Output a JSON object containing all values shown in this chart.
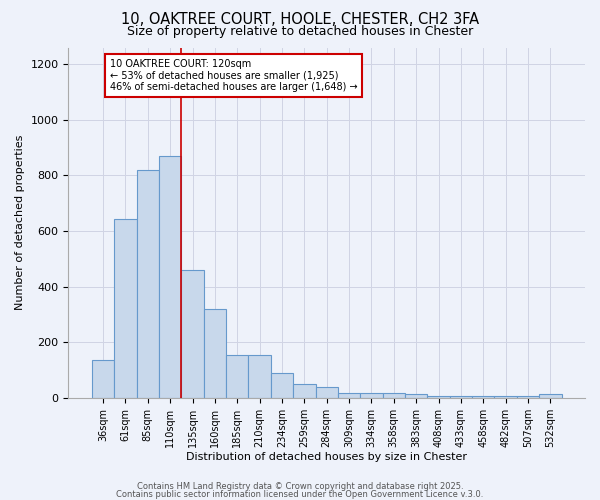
{
  "title": "10, OAKTREE COURT, HOOLE, CHESTER, CH2 3FA",
  "subtitle": "Size of property relative to detached houses in Chester",
  "xlabel": "Distribution of detached houses by size in Chester",
  "ylabel": "Number of detached properties",
  "bar_color": "#c8d8eb",
  "bar_edge_color": "#6699cc",
  "background_color": "#eef2fa",
  "grid_color": "#d0d4e4",
  "vline_color": "#cc0000",
  "vline_x": 3.5,
  "annotation_text": "10 OAKTREE COURT: 120sqm\n← 53% of detached houses are smaller (1,925)\n46% of semi-detached houses are larger (1,648) →",
  "annotation_box_color": "#ffffff",
  "annotation_box_edge": "#cc0000",
  "categories": [
    "36sqm",
    "61sqm",
    "85sqm",
    "110sqm",
    "135sqm",
    "160sqm",
    "185sqm",
    "210sqm",
    "234sqm",
    "259sqm",
    "284sqm",
    "309sqm",
    "334sqm",
    "358sqm",
    "383sqm",
    "408sqm",
    "433sqm",
    "458sqm",
    "482sqm",
    "507sqm",
    "532sqm"
  ],
  "values": [
    135,
    645,
    820,
    870,
    460,
    320,
    155,
    155,
    88,
    50,
    40,
    18,
    18,
    18,
    14,
    5,
    5,
    5,
    5,
    5,
    14
  ],
  "ylim": [
    0,
    1260
  ],
  "yticks": [
    0,
    200,
    400,
    600,
    800,
    1000,
    1200
  ],
  "footer1": "Contains HM Land Registry data © Crown copyright and database right 2025.",
  "footer2": "Contains public sector information licensed under the Open Government Licence v.3.0."
}
